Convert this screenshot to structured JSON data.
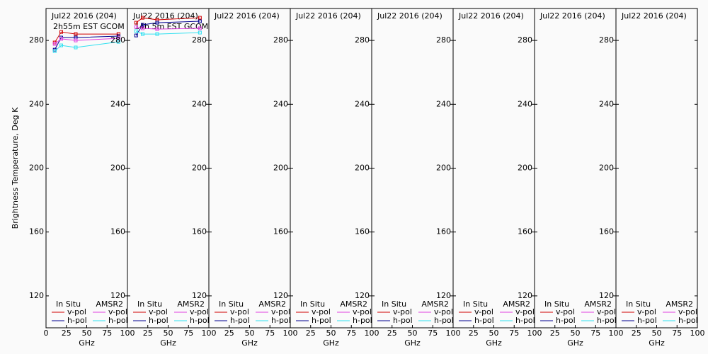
{
  "chart_data": [
    {
      "type": "line",
      "title": "Jul22 2016 (204)",
      "subtitle": "2h55m EST GCOM",
      "ylabel": "Brightness Temperature, Deg K",
      "xlabel": "GHz",
      "xlim": [
        0,
        100
      ],
      "ylim": [
        100,
        300
      ],
      "xticks": [
        0,
        25,
        50,
        75,
        100
      ],
      "yticks": [
        120,
        160,
        200,
        240,
        280
      ],
      "legend_columns": [
        "In Situ",
        "AMSR2"
      ],
      "x": [
        10.65,
        18.7,
        36.5,
        89
      ],
      "series": [
        {
          "name": "v-pol",
          "column": 0,
          "color": "#d00000",
          "values": [
            278.7,
            285.3,
            284,
            284
          ]
        },
        {
          "name": "h-pol",
          "column": 0,
          "color": "#000090",
          "values": [
            274.2,
            281.8,
            281.8,
            282.7
          ]
        },
        {
          "name": "v-pol",
          "column": 1,
          "color": "#e040e0",
          "values": [
            277.8,
            281,
            280,
            281.3
          ]
        },
        {
          "name": "h-pol",
          "column": 1,
          "color": "#30e0f0",
          "values": [
            273.3,
            276.9,
            275.6,
            279.1
          ]
        }
      ]
    },
    {
      "type": "line",
      "title": "Jul22 2016 (204)",
      "subtitle": "14h 5m EST GCOM",
      "xlabel": "GHz",
      "xlim": [
        0,
        100
      ],
      "ylim": [
        100,
        300
      ],
      "xticks": [
        25,
        50,
        75,
        100
      ],
      "yticks": [
        120,
        160,
        200,
        240,
        280
      ],
      "legend_columns": [
        "In Situ",
        "AMSR2"
      ],
      "x": [
        10.65,
        18.7,
        36.5,
        89
      ],
      "series": [
        {
          "name": "v-pol",
          "column": 0,
          "color": "#d00000",
          "values": [
            291.1,
            294.2,
            292.9,
            294.2
          ]
        },
        {
          "name": "h-pol",
          "column": 0,
          "color": "#000090",
          "values": [
            283.1,
            289.8,
            291.1,
            292
          ]
        },
        {
          "name": "v-pol",
          "column": 1,
          "color": "#e040e0",
          "values": [
            288.4,
            287.6,
            287.1,
            287.6
          ]
        },
        {
          "name": "h-pol",
          "column": 1,
          "color": "#30e0f0",
          "values": [
            285.8,
            284,
            284,
            284.9
          ]
        }
      ]
    },
    {
      "type": "line",
      "title": "Jul22 2016 (204)",
      "xlabel": "GHz",
      "xlim": [
        0,
        100
      ],
      "ylim": [
        100,
        300
      ],
      "xticks": [
        25,
        50,
        75,
        100
      ],
      "yticks": [
        120,
        160,
        200,
        240,
        280
      ],
      "legend_columns": [
        "In Situ",
        "AMSR2"
      ],
      "x": [],
      "series": [
        {
          "name": "v-pol",
          "column": 0,
          "color": "#d00000",
          "values": []
        },
        {
          "name": "h-pol",
          "column": 0,
          "color": "#000090",
          "values": []
        },
        {
          "name": "v-pol",
          "column": 1,
          "color": "#e040e0",
          "values": []
        },
        {
          "name": "h-pol",
          "column": 1,
          "color": "#30e0f0",
          "values": []
        }
      ]
    },
    {
      "type": "line",
      "title": "Jul22 2016 (204)",
      "xlabel": "GHz",
      "xlim": [
        0,
        100
      ],
      "ylim": [
        100,
        300
      ],
      "xticks": [
        25,
        50,
        75,
        100
      ],
      "yticks": [
        120,
        160,
        200,
        240,
        280
      ],
      "legend_columns": [
        "In Situ",
        "AMSR2"
      ],
      "x": [],
      "series": [
        {
          "name": "v-pol",
          "column": 0,
          "color": "#d00000",
          "values": []
        },
        {
          "name": "h-pol",
          "column": 0,
          "color": "#000090",
          "values": []
        },
        {
          "name": "v-pol",
          "column": 1,
          "color": "#e040e0",
          "values": []
        },
        {
          "name": "h-pol",
          "column": 1,
          "color": "#30e0f0",
          "values": []
        }
      ]
    },
    {
      "type": "line",
      "title": "Jul22 2016 (204)",
      "xlabel": "GHz",
      "xlim": [
        0,
        100
      ],
      "ylim": [
        100,
        300
      ],
      "xticks": [
        25,
        50,
        75,
        100
      ],
      "yticks": [
        120,
        160,
        200,
        240,
        280
      ],
      "legend_columns": [
        "In Situ",
        "AMSR2"
      ],
      "x": [],
      "series": [
        {
          "name": "v-pol",
          "column": 0,
          "color": "#d00000",
          "values": []
        },
        {
          "name": "h-pol",
          "column": 0,
          "color": "#000090",
          "values": []
        },
        {
          "name": "v-pol",
          "column": 1,
          "color": "#e040e0",
          "values": []
        },
        {
          "name": "h-pol",
          "column": 1,
          "color": "#30e0f0",
          "values": []
        }
      ]
    },
    {
      "type": "line",
      "title": "Jul22 2016 (204)",
      "xlabel": "GHz",
      "xlim": [
        0,
        100
      ],
      "ylim": [
        100,
        300
      ],
      "xticks": [
        25,
        50,
        75,
        100
      ],
      "yticks": [
        120,
        160,
        200,
        240,
        280
      ],
      "legend_columns": [
        "In Situ",
        "AMSR2"
      ],
      "x": [],
      "series": [
        {
          "name": "v-pol",
          "column": 0,
          "color": "#d00000",
          "values": []
        },
        {
          "name": "h-pol",
          "column": 0,
          "color": "#000090",
          "values": []
        },
        {
          "name": "v-pol",
          "column": 1,
          "color": "#e040e0",
          "values": []
        },
        {
          "name": "h-pol",
          "column": 1,
          "color": "#30e0f0",
          "values": []
        }
      ]
    },
    {
      "type": "line",
      "title": "Jul22 2016 (204)",
      "xlabel": "GHz",
      "xlim": [
        0,
        100
      ],
      "ylim": [
        100,
        300
      ],
      "xticks": [
        25,
        50,
        75,
        100
      ],
      "yticks": [
        120,
        160,
        200,
        240,
        280
      ],
      "legend_columns": [
        "In Situ",
        "AMSR2"
      ],
      "x": [],
      "series": [
        {
          "name": "v-pol",
          "column": 0,
          "color": "#d00000",
          "values": []
        },
        {
          "name": "h-pol",
          "column": 0,
          "color": "#000090",
          "values": []
        },
        {
          "name": "v-pol",
          "column": 1,
          "color": "#e040e0",
          "values": []
        },
        {
          "name": "h-pol",
          "column": 1,
          "color": "#30e0f0",
          "values": []
        }
      ]
    },
    {
      "type": "line",
      "title": "Jul22 2016 (204)",
      "xlabel": "GHz",
      "xlim": [
        0,
        100
      ],
      "ylim": [
        100,
        300
      ],
      "xticks": [
        25,
        50,
        75,
        100
      ],
      "yticks": [
        120,
        160,
        200,
        240,
        280
      ],
      "legend_columns": [
        "In Situ",
        "AMSR2"
      ],
      "x": [],
      "series": [
        {
          "name": "v-pol",
          "column": 0,
          "color": "#d00000",
          "values": []
        },
        {
          "name": "h-pol",
          "column": 0,
          "color": "#000090",
          "values": []
        },
        {
          "name": "v-pol",
          "column": 1,
          "color": "#e040e0",
          "values": []
        },
        {
          "name": "h-pol",
          "column": 1,
          "color": "#30e0f0",
          "values": []
        }
      ]
    }
  ]
}
